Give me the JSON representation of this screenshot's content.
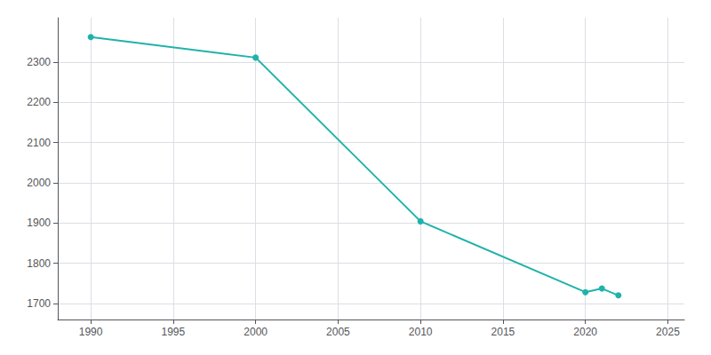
{
  "chart_data": {
    "type": "line",
    "x": [
      1990,
      2000,
      2010,
      2020,
      2021,
      2022
    ],
    "values": [
      2362,
      2311,
      1904,
      1728,
      1737,
      1720
    ],
    "color": "#20b2aa",
    "marker": "circle",
    "xlim": [
      1988,
      2026
    ],
    "ylim": [
      1660,
      2410
    ],
    "xticks": [
      1990,
      1995,
      2000,
      2005,
      2010,
      2015,
      2020,
      2025
    ],
    "yticks": [
      1700,
      1800,
      1900,
      2000,
      2100,
      2200,
      2300
    ],
    "grid": true
  }
}
